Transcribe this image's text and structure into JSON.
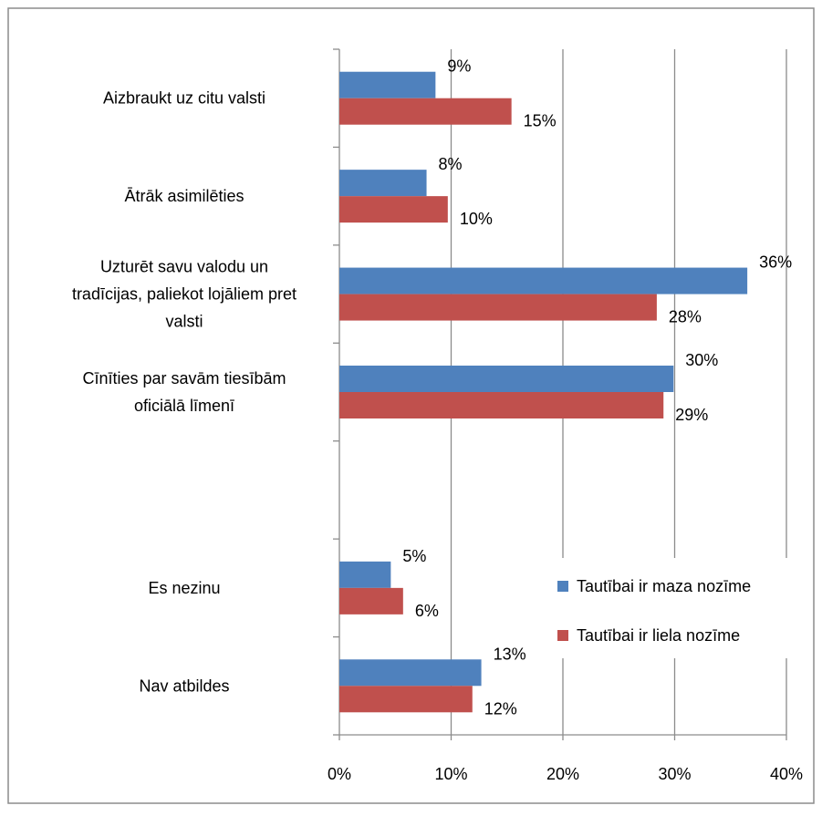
{
  "chart_data": {
    "type": "bar",
    "orientation": "horizontal",
    "categories": [
      [
        "Aizbraukt uz citu valsti"
      ],
      [
        "Ātrāk asimilēties"
      ],
      [
        "Uzturēt savu valodu un",
        "tradīcijas, paliekot lojāliem pret",
        "valsti"
      ],
      [
        "Cīnīties par savām tiesībām",
        "oficiālā līmenī"
      ],
      [],
      [
        "Es nezinu"
      ],
      [
        "Nav atbildes"
      ]
    ],
    "series": [
      {
        "name": "Tautībai ir maza nozīme",
        "color": "#4F81BD",
        "values": [
          0.086,
          0.078,
          0.365,
          0.299,
          null,
          0.046,
          0.127
        ],
        "labels": [
          "9%",
          "8%",
          "36%",
          "30%",
          "",
          "5%",
          "13%"
        ]
      },
      {
        "name": "Tautībai ir liela nozīme",
        "color": "#C0504D",
        "values": [
          0.154,
          0.097,
          0.284,
          0.29,
          null,
          0.057,
          0.119
        ],
        "labels": [
          "15%",
          "10%",
          "28%",
          "29%",
          "",
          "6%",
          "12%"
        ]
      }
    ],
    "xlim": [
      0,
      0.4
    ],
    "xticks": [
      "0%",
      "10%",
      "20%",
      "30%",
      "40%"
    ],
    "grid": true,
    "legend_position": "right"
  }
}
